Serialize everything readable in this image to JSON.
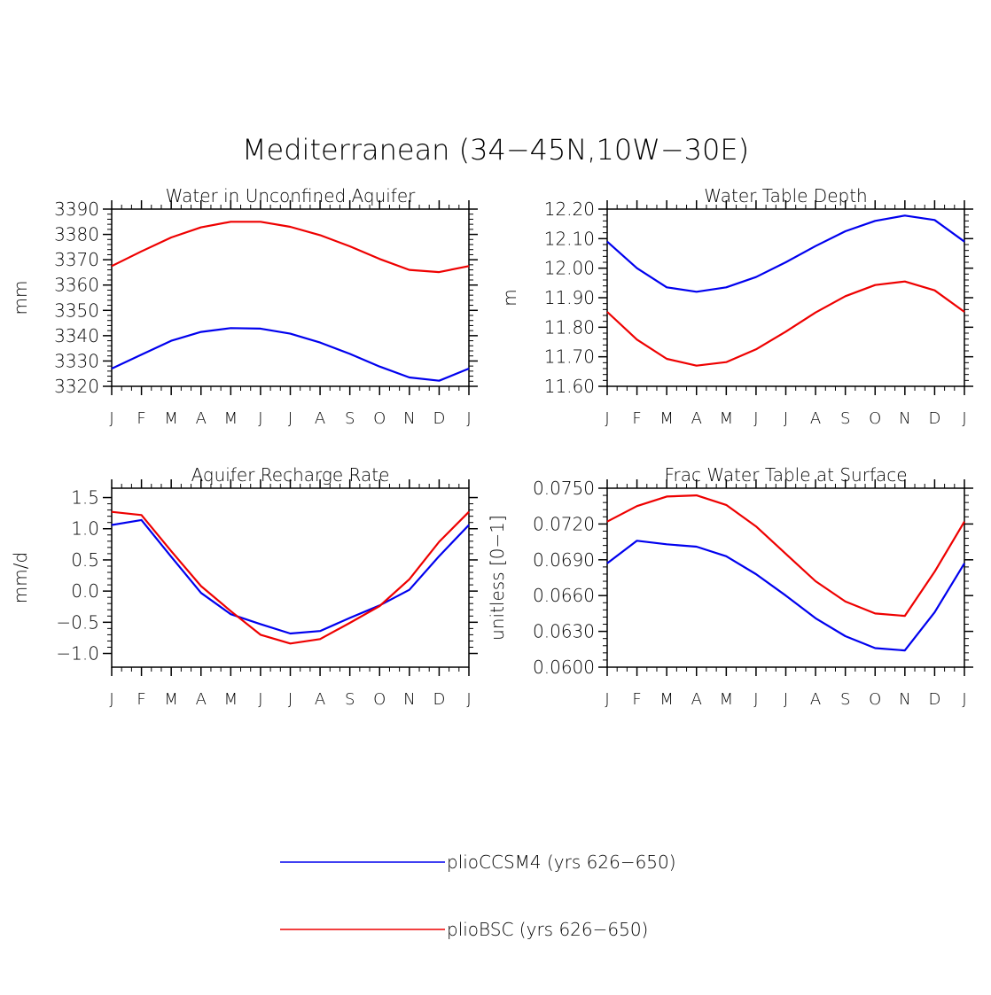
{
  "title": "Mediterranean (34−45N,10W−30E)",
  "colors": {
    "series_a": "#0000ee",
    "series_b": "#ee0000",
    "axis": "#000000"
  },
  "legend": [
    {
      "label": "plioCCSM4 (yrs 626−650)",
      "color": "#0000ee"
    },
    {
      "label": "plioBSC (yrs 626−650)",
      "color": "#ee0000"
    }
  ],
  "chart_data": [
    {
      "type": "line",
      "title": "Water in Unconfined Aquifer",
      "ylabel": "mm",
      "xlabel": "",
      "categories": [
        "J",
        "F",
        "M",
        "A",
        "M",
        "J",
        "J",
        "A",
        "S",
        "O",
        "N",
        "D",
        "J"
      ],
      "ylim": [
        3320,
        3390
      ],
      "yticks": [
        3320,
        3330,
        3340,
        3350,
        3360,
        3370,
        3380,
        3390
      ],
      "ytick_labels": [
        "3320",
        "3330",
        "3340",
        "3350",
        "3360",
        "3370",
        "3380",
        "3390"
      ],
      "series": [
        {
          "name": "plioCCSM4 (yrs 626−650)",
          "color": "#0000ee",
          "values": [
            3327,
            3332.5,
            3338,
            3341.5,
            3343,
            3342.8,
            3340.8,
            3337.3,
            3332.8,
            3327.8,
            3323.5,
            3322.2,
            3327
          ]
        },
        {
          "name": "plioBSC (yrs 626−650)",
          "color": "#ee0000",
          "values": [
            3367.5,
            3373.3,
            3378.8,
            3382.8,
            3385,
            3385,
            3383,
            3379.7,
            3375.3,
            3370.3,
            3366,
            3365.1,
            3367.5
          ]
        }
      ]
    },
    {
      "type": "line",
      "title": "Water Table Depth",
      "ylabel": "m",
      "xlabel": "",
      "categories": [
        "J",
        "F",
        "M",
        "A",
        "M",
        "J",
        "J",
        "A",
        "S",
        "O",
        "N",
        "D",
        "J"
      ],
      "ylim": [
        11.6,
        12.2
      ],
      "yticks": [
        11.6,
        11.7,
        11.8,
        11.9,
        12.0,
        12.1,
        12.2
      ],
      "ytick_labels": [
        "11.60",
        "11.70",
        "11.80",
        "11.90",
        "12.00",
        "12.10",
        "12.20"
      ],
      "series": [
        {
          "name": "plioCCSM4 (yrs 626−650)",
          "color": "#0000ee",
          "values": [
            12.09,
            12.0,
            11.935,
            11.92,
            11.935,
            11.97,
            12.02,
            12.075,
            12.125,
            12.16,
            12.178,
            12.163,
            12.09
          ]
        },
        {
          "name": "plioBSC (yrs 626−650)",
          "color": "#ee0000",
          "values": [
            11.852,
            11.758,
            11.693,
            11.67,
            11.682,
            11.725,
            11.785,
            11.85,
            11.905,
            11.943,
            11.955,
            11.925,
            11.852
          ]
        }
      ]
    },
    {
      "type": "line",
      "title": "Aquifer Recharge Rate",
      "ylabel": "mm/d",
      "xlabel": "",
      "categories": [
        "J",
        "F",
        "M",
        "A",
        "M",
        "J",
        "J",
        "A",
        "S",
        "O",
        "N",
        "D",
        "J"
      ],
      "ylim": [
        -1.22,
        1.65
      ],
      "yticks": [
        -1.0,
        -0.5,
        0.0,
        0.5,
        1.0,
        1.5
      ],
      "ytick_labels": [
        "−1.0",
        "−0.5",
        "0.0",
        "0.5",
        "1.0",
        "1.5"
      ],
      "series": [
        {
          "name": "plioCCSM4 (yrs 626−650)",
          "color": "#0000ee",
          "values": [
            1.06,
            1.14,
            0.55,
            -0.03,
            -0.37,
            -0.53,
            -0.68,
            -0.64,
            -0.43,
            -0.23,
            0.02,
            0.56,
            1.06
          ]
        },
        {
          "name": "plioBSC (yrs 626−650)",
          "color": "#ee0000",
          "values": [
            1.27,
            1.22,
            0.64,
            0.08,
            -0.32,
            -0.7,
            -0.84,
            -0.77,
            -0.51,
            -0.24,
            0.19,
            0.79,
            1.27
          ]
        }
      ]
    },
    {
      "type": "line",
      "title": "Frac Water Table at Surface",
      "ylabel": "unitless [0−1]",
      "xlabel": "",
      "categories": [
        "J",
        "F",
        "M",
        "A",
        "M",
        "J",
        "J",
        "A",
        "S",
        "O",
        "N",
        "D",
        "J"
      ],
      "ylim": [
        0.06,
        0.075
      ],
      "yticks": [
        0.06,
        0.063,
        0.066,
        0.069,
        0.072,
        0.075
      ],
      "ytick_labels": [
        "0.0600",
        "0.0630",
        "0.0660",
        "0.0690",
        "0.0720",
        "0.0750"
      ],
      "series": [
        {
          "name": "plioCCSM4 (yrs 626−650)",
          "color": "#0000ee",
          "values": [
            0.0687,
            0.0706,
            0.0703,
            0.0701,
            0.0693,
            0.0678,
            0.066,
            0.0641,
            0.0626,
            0.0616,
            0.0614,
            0.0646,
            0.0687
          ]
        },
        {
          "name": "plioBSC (yrs 626−650)",
          "color": "#ee0000",
          "values": [
            0.0722,
            0.0735,
            0.0743,
            0.0744,
            0.0736,
            0.0718,
            0.0695,
            0.0672,
            0.0655,
            0.0645,
            0.0643,
            0.068,
            0.0722
          ]
        }
      ]
    }
  ]
}
